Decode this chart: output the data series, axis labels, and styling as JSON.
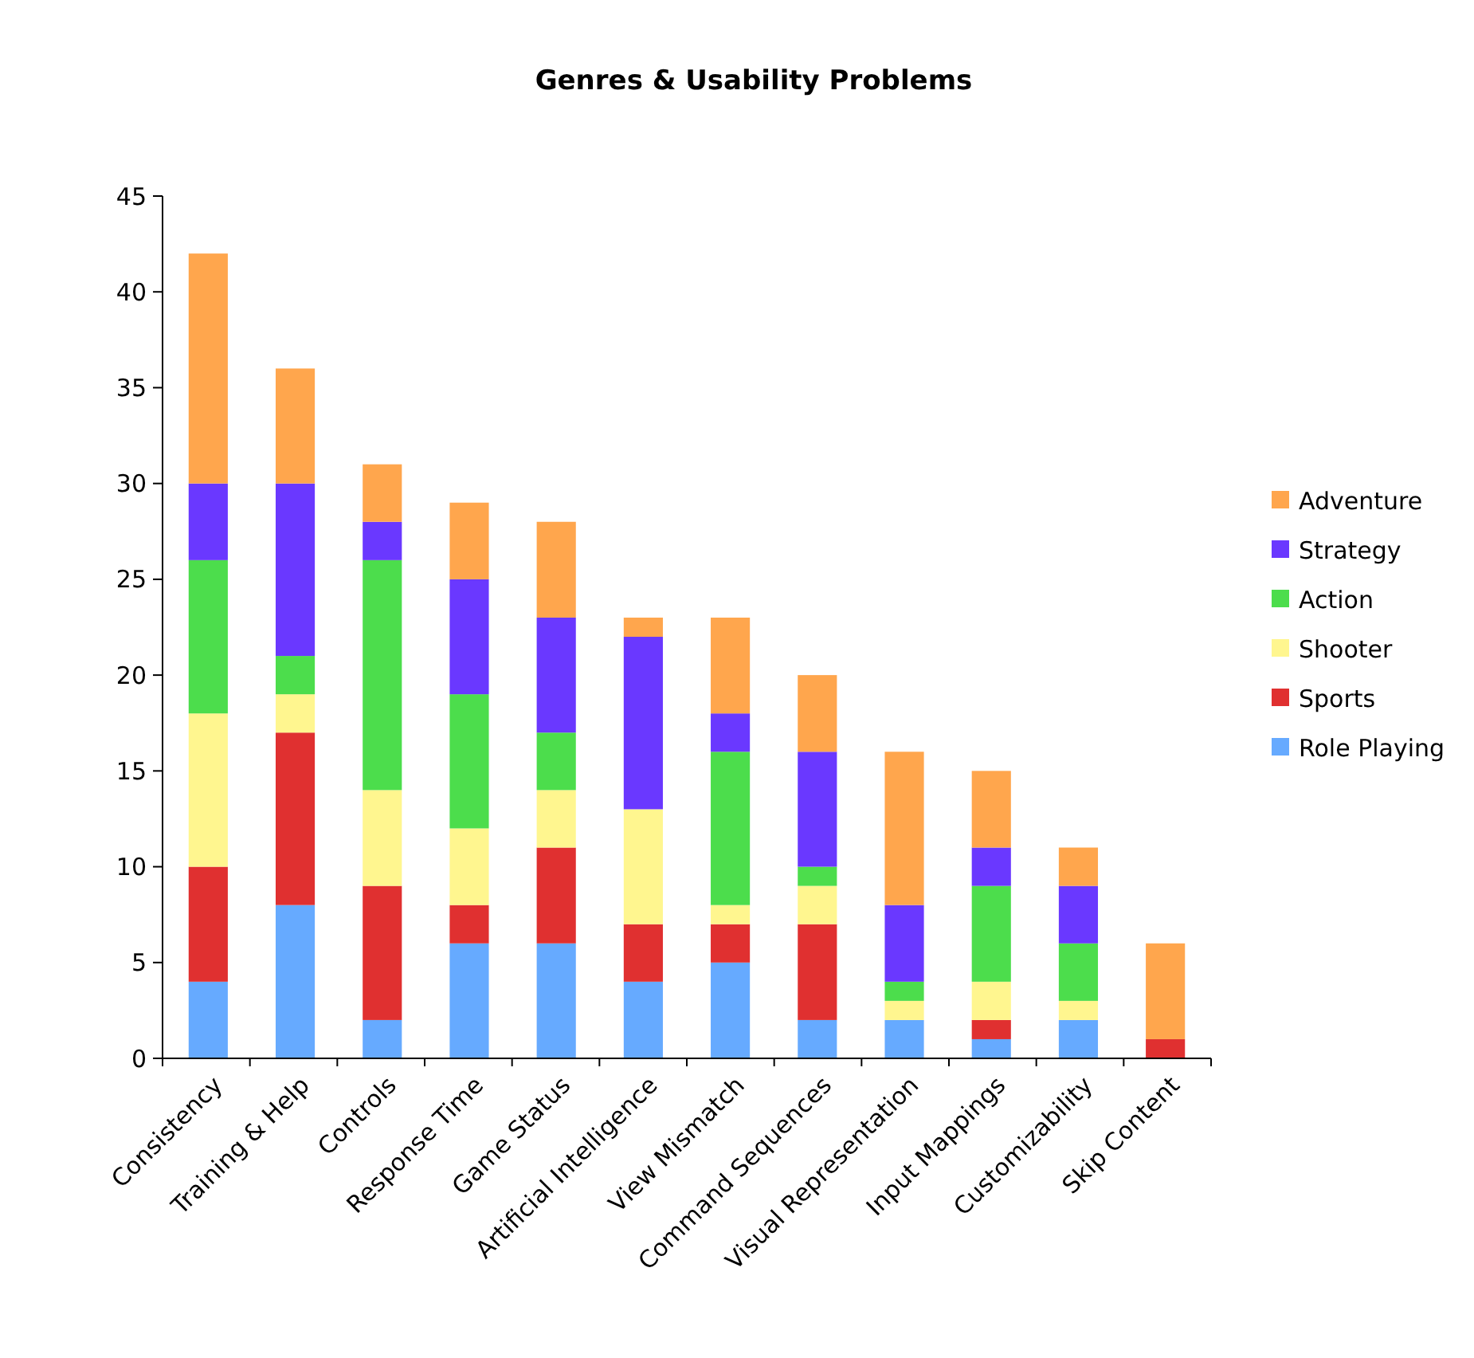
{
  "chart_data": {
    "type": "bar",
    "title": "Genres & Usability Problems",
    "stacked": true,
    "legend": "right",
    "grid": false,
    "categories": [
      "Consistency",
      "Training & Help",
      "Controls",
      "Response Time",
      "Game Status",
      "Artificial Intelligence",
      "View Mismatch",
      "Command Sequences",
      "Visual Representation",
      "Input Mappings",
      "Customizability",
      "Skip Content"
    ],
    "ylim": [
      0,
      45
    ],
    "yticks": [
      0,
      5,
      10,
      15,
      20,
      25,
      30,
      35,
      40,
      45
    ],
    "series": [
      {
        "name": "Role Playing",
        "color": "#66aaff",
        "values": [
          4,
          8,
          2,
          6,
          6,
          4,
          5,
          2,
          2,
          1,
          2,
          0
        ]
      },
      {
        "name": "Sports",
        "color": "#e03030",
        "values": [
          6,
          9,
          7,
          2,
          5,
          3,
          2,
          5,
          0,
          1,
          0,
          1
        ]
      },
      {
        "name": "Shooter",
        "color": "#fff68f",
        "values": [
          8,
          2,
          5,
          4,
          3,
          6,
          1,
          2,
          1,
          2,
          1,
          0
        ]
      },
      {
        "name": "Action",
        "color": "#4cdd4c",
        "values": [
          8,
          2,
          12,
          7,
          3,
          0,
          8,
          1,
          1,
          5,
          3,
          0
        ]
      },
      {
        "name": "Strategy",
        "color": "#6a38ff",
        "values": [
          4,
          9,
          2,
          6,
          6,
          9,
          2,
          6,
          4,
          2,
          3,
          0
        ]
      },
      {
        "name": "Adventure",
        "color": "#ffa64d",
        "values": [
          12,
          6,
          3,
          4,
          5,
          1,
          5,
          4,
          8,
          4,
          2,
          5
        ]
      }
    ]
  }
}
